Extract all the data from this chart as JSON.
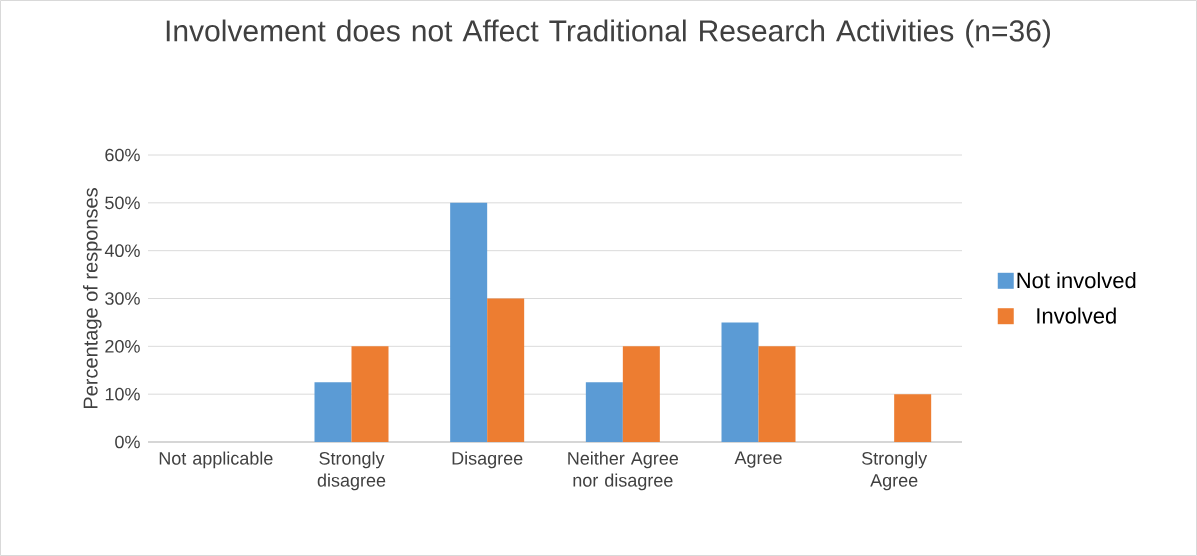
{
  "chart_data": {
    "type": "bar",
    "title": "Involvement does not Affect Traditional Research Activities (n=36)",
    "ylabel": "Percentage of responses",
    "categories": [
      "Not applicable",
      "Strongly disagree",
      "Disagree",
      "Neither Agree nor disagree",
      "Agree",
      "Strongly Agree"
    ],
    "series": [
      {
        "name": "Not involved",
        "color": "#5b9bd5",
        "values": [
          0,
          12.5,
          50,
          12.5,
          25,
          0
        ]
      },
      {
        "name": "Involved",
        "color": "#ed7d31",
        "values": [
          0,
          20,
          30,
          20,
          20,
          10
        ]
      }
    ],
    "ylim": [
      0,
      60
    ],
    "yticks": [
      {
        "value": 0,
        "label": "0%"
      },
      {
        "value": 10,
        "label": "10%"
      },
      {
        "value": 20,
        "label": "20%"
      },
      {
        "value": 30,
        "label": "30%"
      },
      {
        "value": 40,
        "label": "40%"
      },
      {
        "value": 50,
        "label": "50%"
      },
      {
        "value": 60,
        "label": "60%"
      }
    ],
    "grid": "y",
    "legend": "right"
  }
}
